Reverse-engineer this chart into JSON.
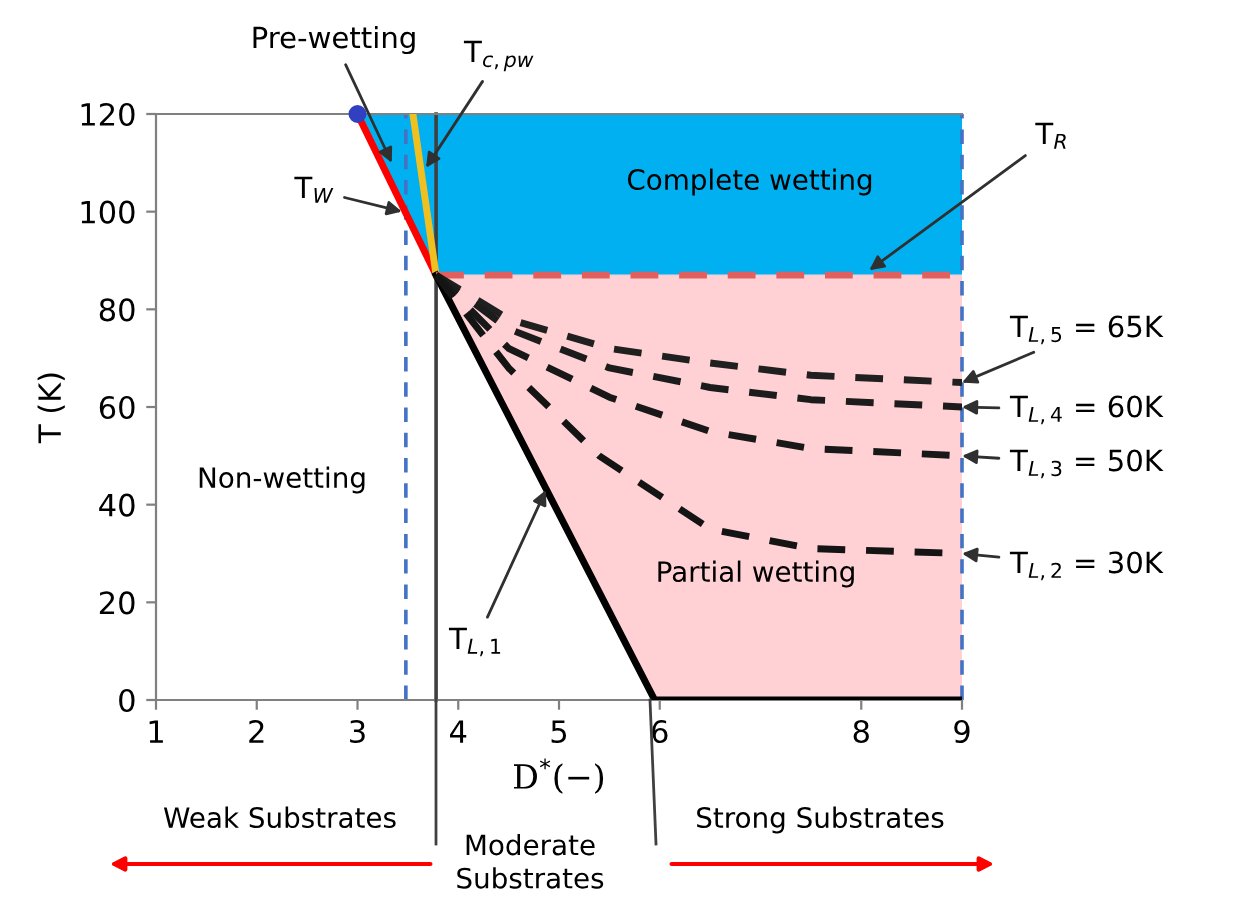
{
  "chart_data": {
    "type": "line",
    "xlabel": "D$^{*}$(−)",
    "ylabel": "T (K)",
    "xlim": [
      1,
      9
    ],
    "ylim": [
      0,
      120
    ],
    "xticks": [
      1,
      2,
      3,
      4,
      5,
      6,
      8,
      9
    ],
    "yticks": [
      0,
      20,
      40,
      60,
      80,
      100,
      120
    ],
    "grid": false,
    "series": [
      {
        "type": "area",
        "color": "#00b0f0",
        "x": [
          3.0,
          3.78,
          9
        ],
        "values": [
          null,
          null,
          null
        ],
        "lower": [
          120,
          87,
          87
        ],
        "upper": [
          120,
          120,
          120
        ]
      },
      {
        "type": "area",
        "color": "#ffd0d4",
        "x": [
          3.78,
          5.95,
          9
        ],
        "values": [
          null,
          null,
          null
        ],
        "lower": [
          87,
          0,
          0
        ],
        "upper": [
          87,
          87,
          87
        ]
      },
      {
        "color": "#e06060",
        "line_style": "dashed",
        "x": [
          3.78,
          9
        ],
        "values": [
          87,
          87
        ]
      },
      {
        "color": "#ff0000",
        "line_style": "solid",
        "x": [
          3.0,
          3.78
        ],
        "values": [
          120,
          87
        ]
      },
      {
        "color": "#f0c020",
        "line_style": "solid",
        "x": [
          3.55,
          3.78
        ],
        "values": [
          120,
          87
        ]
      },
      {
        "color": "#000000",
        "line_style": "solid",
        "x": [
          3.78,
          5.95,
          9
        ],
        "values": [
          87,
          0,
          0
        ]
      },
      {
        "color": "#202020",
        "line_style": "dashed",
        "x": [
          3.78,
          4.5,
          5.5,
          6.5,
          7.5,
          9
        ],
        "values": [
          87,
          78,
          72,
          69,
          66.5,
          65
        ]
      },
      {
        "color": "#1c1c1c",
        "line_style": "dashed",
        "x": [
          3.78,
          4.5,
          5.5,
          6.5,
          7.5,
          9
        ],
        "values": [
          87,
          76,
          68,
          64,
          61.5,
          60
        ]
      },
      {
        "color": "#181818",
        "line_style": "dashed",
        "x": [
          3.78,
          4.5,
          5.5,
          6.5,
          7.5,
          9
        ],
        "values": [
          87,
          72,
          62,
          55,
          51.5,
          50
        ]
      },
      {
        "color": "#141414",
        "line_style": "dashed",
        "x": [
          3.78,
          4.5,
          5.4,
          6.5,
          7.5,
          9
        ],
        "values": [
          87,
          68,
          50,
          35,
          31,
          30
        ]
      },
      {
        "type": "scatter",
        "color": "#3040c0",
        "marker": "circle",
        "x": [
          3.0
        ],
        "values": [
          120
        ]
      }
    ],
    "ref_lines": [
      {
        "axis": "x",
        "value": 3.78,
        "color": "#404040",
        "line_style": "solid"
      },
      {
        "axis": "x",
        "value": 3.48,
        "color": "#4472c4",
        "line_style": "dashed"
      },
      {
        "axis": "x",
        "value": 9,
        "color": "#4472c4",
        "line_style": "dashed"
      }
    ],
    "annotations": [
      {
        "text": "Pre-wetting",
        "x": 3.34,
        "y": 110
      },
      {
        "text": "T$_{c,pw}$",
        "x": 3.68,
        "y": 109
      },
      {
        "text": "T$_{W}$",
        "x": 3.44,
        "y": 100
      },
      {
        "text": "T$_{R}$",
        "x": 8.08,
        "y": 88
      },
      {
        "text": "T$_{L,5}$ = 65K",
        "x": 9,
        "y": 65
      },
      {
        "text": "T$_{L,4}$ = 60K",
        "x": 9,
        "y": 60
      },
      {
        "text": "T$_{L,3}$ = 50K",
        "x": 9,
        "y": 50
      },
      {
        "text": "T$_{L,2}$ = 30K",
        "x": 9,
        "y": 30
      },
      {
        "text": "T$_{L,1}$",
        "x": 4.87,
        "y": 43
      },
      "Complete wetting",
      "Non-wetting",
      "Partial wetting",
      "Weak Substrates",
      "Moderate\nSubstrates",
      "Strong Substrates"
    ]
  }
}
